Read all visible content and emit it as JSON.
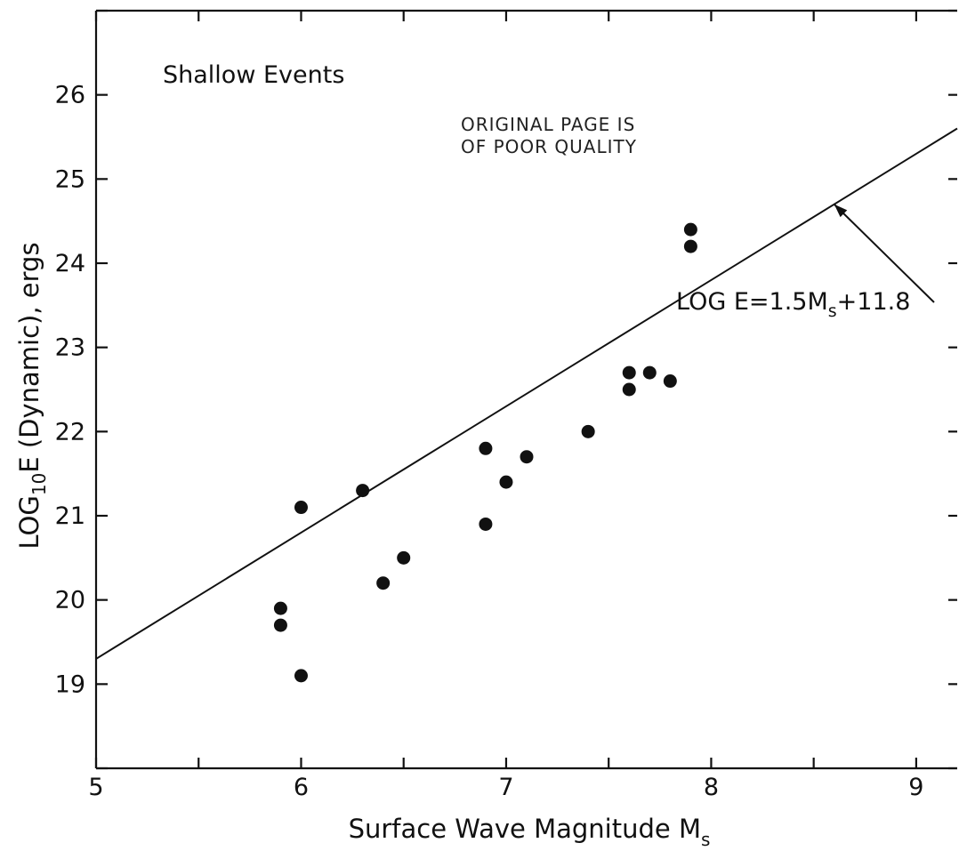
{
  "chart_data": {
    "type": "scatter",
    "title": "",
    "annotation": "Shallow Events",
    "stamp_lines": [
      "ORIGINAL PAGE IS",
      "OF POOR QUALITY"
    ],
    "xlabel_main": "Surface Wave Magnitude M",
    "xlabel_sub": "s",
    "ylabel_pre": "LOG",
    "ylabel_sub": "10",
    "ylabel_post": "E (Dynamic), ergs",
    "xlim": [
      5,
      9.2
    ],
    "ylim": [
      18,
      27
    ],
    "x_ticks": [
      "5",
      "6",
      "7",
      "8",
      "9"
    ],
    "y_ticks": [
      "19",
      "20",
      "21",
      "22",
      "23",
      "24",
      "25",
      "26"
    ],
    "grid": false,
    "points": [
      {
        "x": 5.9,
        "y": 19.9
      },
      {
        "x": 5.9,
        "y": 19.7
      },
      {
        "x": 6.0,
        "y": 21.1
      },
      {
        "x": 6.0,
        "y": 19.1
      },
      {
        "x": 6.3,
        "y": 21.3
      },
      {
        "x": 6.4,
        "y": 20.2
      },
      {
        "x": 6.5,
        "y": 20.5
      },
      {
        "x": 6.9,
        "y": 21.8
      },
      {
        "x": 6.9,
        "y": 20.9
      },
      {
        "x": 7.0,
        "y": 21.4
      },
      {
        "x": 7.1,
        "y": 21.7
      },
      {
        "x": 7.4,
        "y": 22.0
      },
      {
        "x": 7.6,
        "y": 22.7
      },
      {
        "x": 7.6,
        "y": 22.5
      },
      {
        "x": 7.7,
        "y": 22.7
      },
      {
        "x": 7.8,
        "y": 22.6
      },
      {
        "x": 7.9,
        "y": 24.4
      },
      {
        "x": 7.9,
        "y": 24.2
      }
    ],
    "fit_line": {
      "label_pre": "LOG  E=1.5M",
      "label_sub": "s",
      "label_post": "+11.8",
      "slope": 1.5,
      "intercept": 11.8,
      "x_range": [
        5,
        9.2
      ],
      "arrow_target_x": 8.6
    }
  }
}
